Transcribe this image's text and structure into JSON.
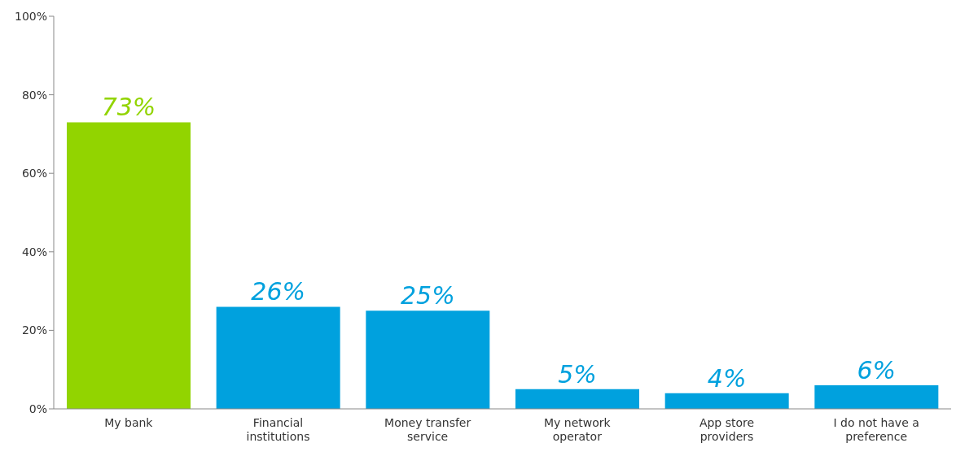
{
  "chart_data": {
    "type": "bar",
    "categories": [
      "My bank",
      "Financial institutions",
      "Money transfer service",
      "My network operator",
      "App store providers",
      "I do not have a preference"
    ],
    "values": [
      73,
      26,
      25,
      5,
      4,
      6
    ],
    "colors": [
      "#92d400",
      "#00a1de",
      "#00a1de",
      "#00a1de",
      "#00a1de",
      "#00a1de"
    ],
    "value_labels": [
      "73%",
      "26%",
      "25%",
      "5%",
      "4%",
      "6%"
    ],
    "ylim": [
      0,
      100
    ],
    "yticks": [
      {
        "value": 0,
        "label": "0%"
      },
      {
        "value": 20,
        "label": "20%"
      },
      {
        "value": 40,
        "label": "40%"
      },
      {
        "value": 60,
        "label": "60%"
      },
      {
        "value": 80,
        "label": "80%"
      },
      {
        "value": 100,
        "label": "100%"
      }
    ],
    "grid": false,
    "legend": false
  }
}
